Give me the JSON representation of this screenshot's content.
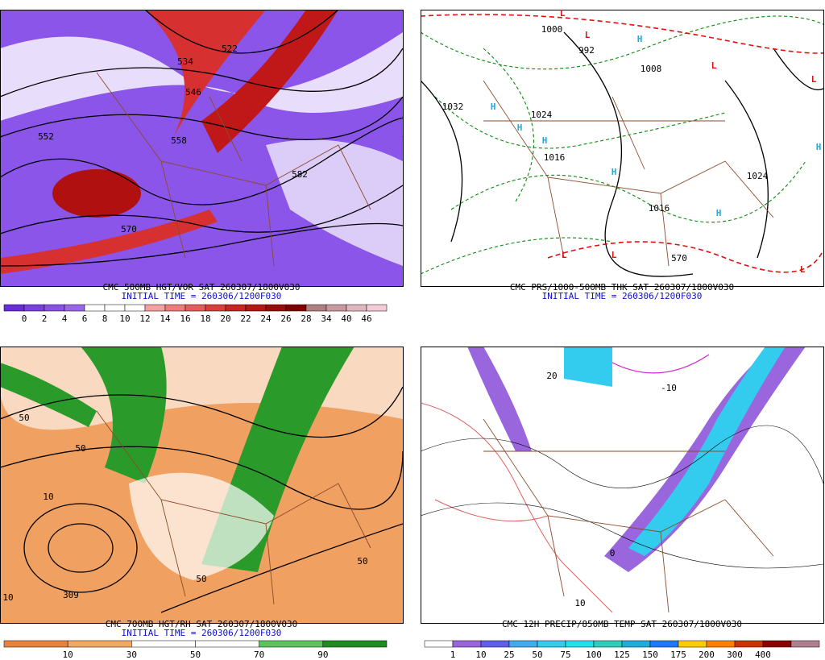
{
  "panels": [
    {
      "title": "CMC 500MB HGT/VOR SAT 260307/1800V030",
      "initial_time": "INITIAL TIME = 260306/1200F030",
      "colorbar": {
        "colors": [
          "#6a2ed8",
          "#7a3fe0",
          "#8a52e6",
          "#9a66ea",
          "#ffffff",
          "#ffffff",
          "#ffffff",
          "#f4a0a0",
          "#ee7c7c",
          "#e65a5a",
          "#dd3c3c",
          "#cc2222",
          "#b51515",
          "#9a0a0a",
          "#800000",
          "#b08080",
          "#c89aa0",
          "#e0b8c0",
          "#f4ccd8"
        ],
        "labels": [
          0,
          2,
          4,
          6,
          8,
          10,
          12,
          14,
          16,
          18,
          20,
          22,
          24,
          26,
          28,
          34,
          40,
          46
        ]
      },
      "map_labels": [
        534,
        522,
        546,
        558,
        552,
        570,
        582
      ]
    },
    {
      "title": "CMC PRS/1000-500MB THK SAT 260307/1800V030",
      "initial_time": "INITIAL TIME = 260306/1200F030",
      "map_labels": [
        1000,
        992,
        1008,
        1032,
        1024,
        1016,
        1024,
        1016,
        570
      ],
      "highs": [
        "H",
        "H",
        "H",
        "H",
        "H",
        "H",
        "H"
      ],
      "lows": [
        "L",
        "L",
        "L",
        "L",
        "L",
        "L",
        "L"
      ]
    },
    {
      "title": "CMC 700MB HGT/RH SAT 260307/1800V030",
      "initial_time": "INITIAL TIME = 260306/1200F030",
      "colorbar": {
        "colors": [
          "#e8823c",
          "#f4a862",
          "#ffffff",
          "#ffffff",
          "#5cc45c",
          "#1e8c1e"
        ],
        "labels": [
          10,
          30,
          50,
          70,
          90
        ]
      },
      "map_labels": [
        50,
        10,
        309,
        50,
        10,
        50,
        50
      ]
    },
    {
      "title": "CMC 12H PRECIP/850MB TEMP SAT 260307/1800V030",
      "colorbar": {
        "colors": [
          "#ffffff",
          "#9966dd",
          "#5f5fe8",
          "#44aaee",
          "#33ccee",
          "#22e0ee",
          "#33ccbb",
          "#22aadd",
          "#1e78ff",
          "#ffcc00",
          "#ff7f00",
          "#cc3300",
          "#8b0000",
          "#b08090"
        ],
        "labels": [
          1,
          10,
          25,
          50,
          75,
          100,
          125,
          150,
          175,
          200,
          300,
          400
        ]
      },
      "map_labels": [
        -10,
        20,
        0,
        10
      ]
    }
  ]
}
